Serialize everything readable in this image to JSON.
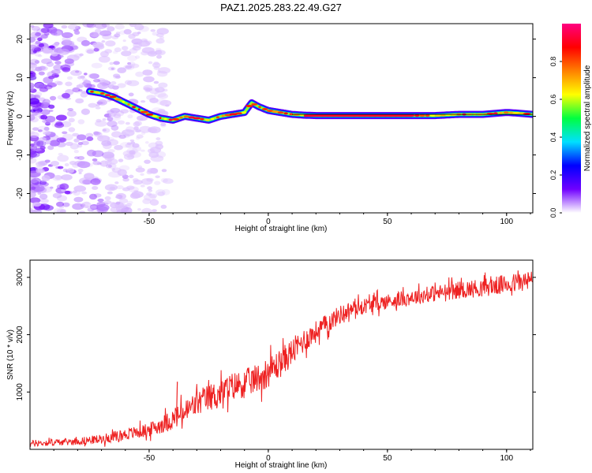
{
  "figure": {
    "title": "PAZ1.2025.283.22.49.G27"
  },
  "chart_data": [
    {
      "type": "heatmap",
      "title": "PAZ1.2025.283.22.49.G27",
      "xlabel": "Height of straight line (km)",
      "ylabel": "Frequency (Hz)",
      "xlim": [
        -100,
        111
      ],
      "ylim": [
        -25,
        24
      ],
      "xticks": [
        -50,
        0,
        50,
        100
      ],
      "xtick_labels": [
        "-50",
        "0",
        "50",
        "100"
      ],
      "yticks": [
        20,
        10,
        0,
        -10,
        -20
      ],
      "ytick_labels": [
        "20",
        "10",
        "0",
        "-10",
        "-20"
      ],
      "colorbar": {
        "label": "Normalized spectral amplitude",
        "range": [
          0,
          1
        ],
        "ticks": [
          0,
          0.2,
          0.4,
          0.6,
          0.8
        ],
        "tick_labels": [
          "0.0",
          "0.2",
          "0.4",
          "0.6",
          "0.8"
        ],
        "colors": [
          "#ffffff",
          "#7000ff",
          "#0000ff",
          "#00e0ff",
          "#00ff40",
          "#ffff00",
          "#ff8000",
          "#ff0000",
          "#ff0080"
        ]
      },
      "ridge": {
        "x": [
          -75,
          -70,
          -65,
          -60,
          -55,
          -50,
          -45,
          -40,
          -35,
          -30,
          -25,
          -20,
          -15,
          -10,
          -7,
          -4,
          0,
          5,
          10,
          15,
          20,
          30,
          40,
          50,
          60,
          70,
          80,
          90,
          100,
          105,
          111
        ],
        "y": [
          6.5,
          6,
          5,
          3.5,
          2,
          0.5,
          -0.5,
          -1,
          0,
          -0.5,
          -1,
          0,
          0.5,
          1,
          3.5,
          2.5,
          1.5,
          1,
          0.5,
          0.3,
          0.2,
          0.2,
          0.2,
          0.2,
          0.2,
          0.2,
          0.5,
          0.5,
          1,
          0.8,
          0.5
        ]
      },
      "noise_region_x": [
        -100,
        -50
      ]
    },
    {
      "type": "line",
      "xlabel": "Height of straight line (km)",
      "ylabel": "SNR (10 * v/v)",
      "xlim": [
        -100,
        111
      ],
      "ylim": [
        0,
        3300
      ],
      "xticks": [
        -50,
        0,
        50,
        100
      ],
      "xtick_labels": [
        "-50",
        "0",
        "50",
        "100"
      ],
      "yticks": [
        1000,
        2000,
        3000
      ],
      "ytick_labels": [
        "1000",
        "2000",
        "3000"
      ],
      "color": "#ee2222",
      "series": [
        {
          "name": "SNR",
          "x": [
            -100,
            -90,
            -80,
            -70,
            -60,
            -55,
            -50,
            -45,
            -40,
            -35,
            -30,
            -25,
            -20,
            -15,
            -10,
            -5,
            0,
            5,
            10,
            15,
            20,
            25,
            30,
            35,
            40,
            50,
            60,
            70,
            80,
            90,
            100,
            111
          ],
          "values": [
            100,
            120,
            140,
            180,
            260,
            300,
            340,
            430,
            520,
            650,
            800,
            900,
            980,
            1100,
            1150,
            1230,
            1350,
            1500,
            1700,
            1900,
            2050,
            2200,
            2350,
            2450,
            2500,
            2580,
            2650,
            2720,
            2780,
            2820,
            2880,
            2950
          ],
          "noise_amp": [
            70,
            70,
            80,
            100,
            130,
            140,
            150,
            190,
            230,
            270,
            290,
            300,
            300,
            310,
            310,
            320,
            330,
            320,
            300,
            270,
            240,
            220,
            200,
            180,
            170,
            170,
            170,
            180,
            190,
            200,
            210,
            220
          ],
          "spikes": [
            {
              "x": -38.5,
              "value": 1180
            }
          ]
        }
      ]
    }
  ]
}
